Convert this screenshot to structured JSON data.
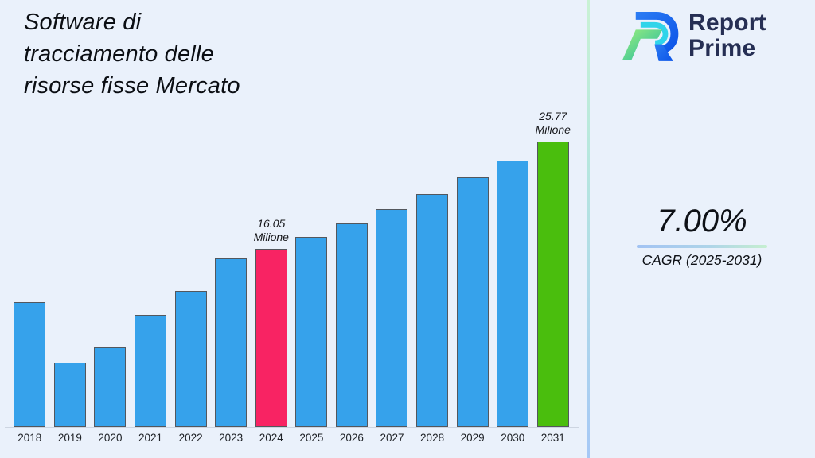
{
  "page": {
    "background": "#EAF1FB"
  },
  "title": {
    "lines": [
      "Software di",
      "tracciamento delle",
      "risorse fisse Mercato"
    ]
  },
  "logo": {
    "name": "Report Prime",
    "line1": "Report",
    "line2": "Prime",
    "icon": "report-prime-logo-icon",
    "text_color": "#262f54"
  },
  "cagr": {
    "value": "7.00%",
    "label": "CAGR (2025-2031)"
  },
  "chart_data": {
    "type": "bar",
    "title": "Software di tracciamento delle risorse fisse Mercato",
    "unit": "Milione",
    "categories": [
      "2018",
      "2019",
      "2020",
      "2021",
      "2022",
      "2023",
      "2024",
      "2025",
      "2026",
      "2027",
      "2028",
      "2029",
      "2030",
      "2031"
    ],
    "values": [
      11.25,
      5.85,
      7.15,
      10.1,
      12.25,
      15.2,
      16.05,
      17.17,
      18.37,
      19.66,
      21.03,
      22.51,
      24.08,
      25.77
    ],
    "annotations": [
      {
        "year": "2024",
        "line1": "16.05",
        "line2": "Milione"
      },
      {
        "year": "2031",
        "line1": "25.77",
        "line2": "Milione"
      }
    ],
    "colors": {
      "default": "#36A2EB",
      "border": "#53575d",
      "highlights": {
        "2024": "#F82363",
        "2031": "#4ABE0D"
      }
    },
    "xlabel": "",
    "ylabel": "",
    "ylim": [
      0,
      27
    ],
    "grid": false,
    "legend": "none"
  }
}
